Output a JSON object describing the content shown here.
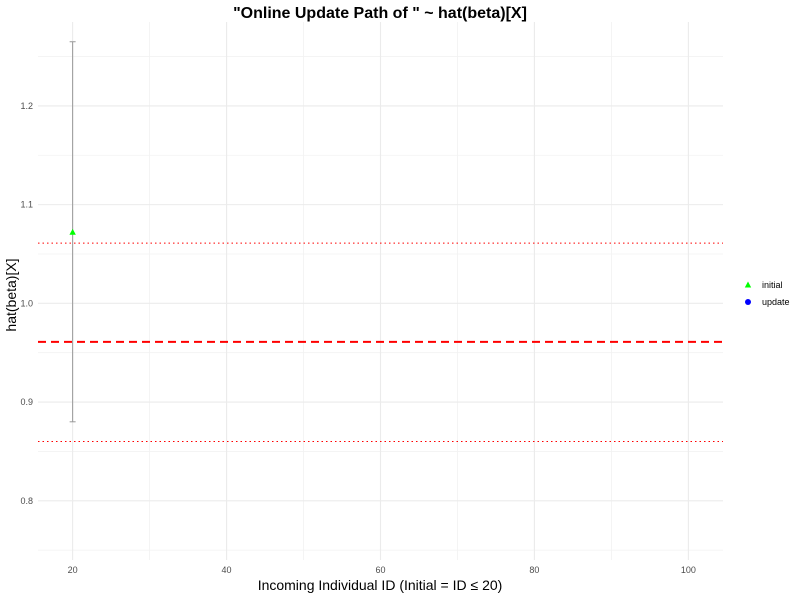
{
  "chart_data": {
    "type": "scatter",
    "title": "\"Online Update Path of \" ~ hat(beta)[X]",
    "xlabel": "Incoming Individual ID (Initial = ID ≤ 20)",
    "ylabel": "hat(beta)[X]",
    "xlim": [
      15.5,
      104.5
    ],
    "ylim": [
      0.74,
      1.285
    ],
    "x_ticks": [
      "20",
      "40",
      "60",
      "80",
      "100"
    ],
    "y_ticks": [
      "0.8",
      "0.9",
      "1.0",
      "1.1",
      "1.2"
    ],
    "grid": true,
    "legend_position": "right",
    "series": [
      {
        "name": "initial",
        "marker": "triangle",
        "color": "#00ff00",
        "points": [
          {
            "x": 20,
            "y": 1.072,
            "lower": 0.88,
            "upper": 1.265
          }
        ]
      },
      {
        "name": "update",
        "marker": "circle",
        "color": "#0000ff",
        "points": []
      }
    ],
    "reference_lines": [
      {
        "y": 0.961,
        "style": "dashed",
        "color": "#ff0000"
      },
      {
        "y": 1.061,
        "style": "dotted",
        "color": "#ff0000"
      },
      {
        "y": 0.86,
        "style": "dotted",
        "color": "#ff0000"
      }
    ]
  }
}
